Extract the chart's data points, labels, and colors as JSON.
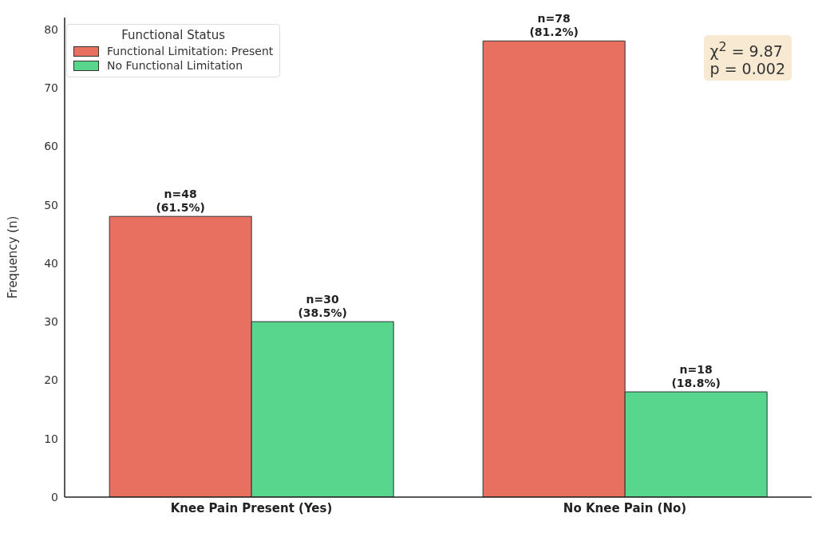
{
  "chart_data": {
    "type": "bar",
    "categories": [
      "Knee Pain Present (Yes)",
      "No Knee Pain (No)"
    ],
    "series": [
      {
        "name": "Functional Limitation: Present",
        "color": "#e87060",
        "values": [
          48,
          78
        ],
        "value_labels": [
          "n=48\n(61.5%)",
          "n=78\n(81.2%)"
        ]
      },
      {
        "name": "No Functional Limitation",
        "color": "#58d68d",
        "values": [
          30,
          18
        ],
        "value_labels": [
          "n=30\n(38.5%)",
          "n=18\n(18.8%)"
        ]
      }
    ],
    "ylabel": "Frequency (n)",
    "ylim": [
      0,
      82
    ],
    "yticks": [
      0,
      10,
      20,
      30,
      40,
      50,
      60,
      70,
      80
    ],
    "legend_title": "Functional Status",
    "legend": "top left",
    "grid": false,
    "annotations": [
      "χ$^{2}$ = 9.87",
      "p = 0.002"
    ]
  }
}
